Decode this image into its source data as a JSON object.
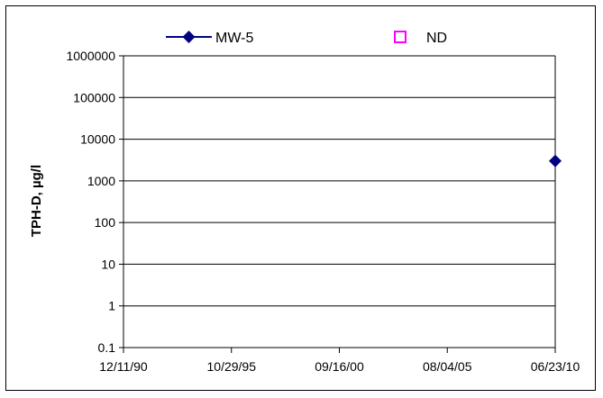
{
  "chart_data": {
    "type": "scatter",
    "title": "",
    "xlabel": "",
    "ylabel": "TPH-D, µg/l",
    "y_scale": "log",
    "ylim": [
      0.1,
      1000000
    ],
    "y_ticks": [
      "0.1",
      "1",
      "10",
      "100",
      "1000",
      "10000",
      "100000",
      "1000000"
    ],
    "xlim": [
      "1990-12-11",
      "2010-06-23"
    ],
    "x_ticks": [
      "12/11/90",
      "10/29/95",
      "09/16/00",
      "08/04/05",
      "06/23/10"
    ],
    "grid": "horizontal",
    "legend_position": "top",
    "series": [
      {
        "name": "MW-5",
        "marker": "diamond",
        "line": true,
        "color": "#000080",
        "points": [
          {
            "x": "2010-06-23",
            "y": 3000
          }
        ]
      },
      {
        "name": "ND",
        "marker": "open-square",
        "line": false,
        "color": "#ff00ff",
        "points": []
      }
    ]
  }
}
